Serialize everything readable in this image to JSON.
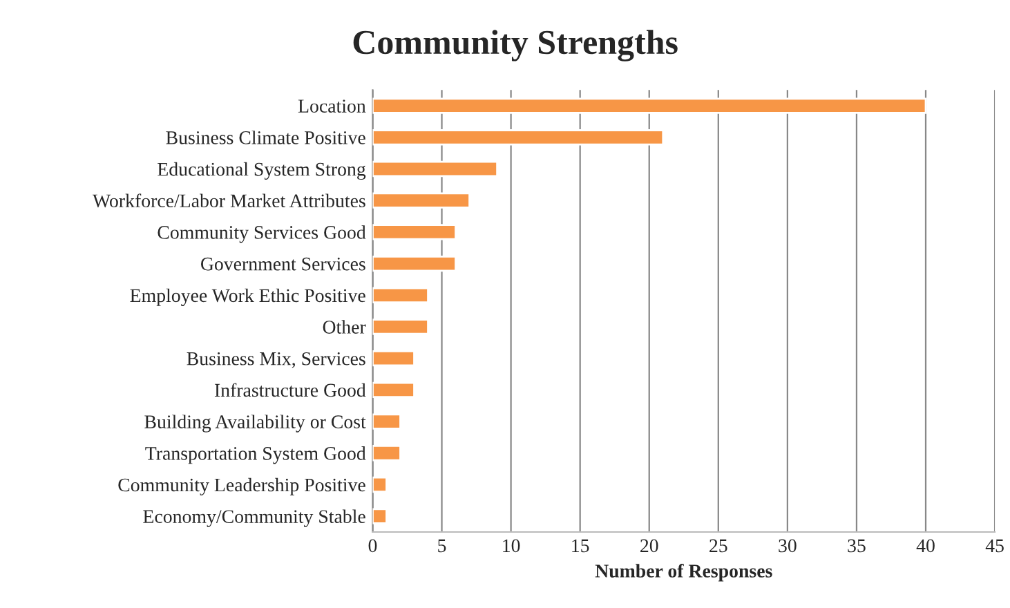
{
  "chart_data": {
    "type": "bar",
    "orientation": "horizontal",
    "title": "Community Strengths",
    "xlabel": "Number of Responses",
    "categories": [
      "Location",
      "Business Climate Positive",
      "Educational System Strong",
      "Workforce/Labor Market Attributes",
      "Community Services Good",
      "Government Services",
      "Employee Work Ethic Positive",
      "Other",
      "Business Mix, Services",
      "Infrastructure Good",
      "Building Availability or Cost",
      "Transportation System Good",
      "Community Leadership Positive",
      "Economy/Community Stable"
    ],
    "values": [
      40,
      21,
      9,
      7,
      6,
      6,
      4,
      4,
      3,
      3,
      2,
      2,
      1,
      1
    ],
    "color": "#f79646",
    "xlim": [
      0,
      45
    ],
    "xticks": [
      0,
      5,
      10,
      15,
      20,
      25,
      30,
      35,
      40,
      45
    ],
    "grid": "x",
    "legend": false
  }
}
